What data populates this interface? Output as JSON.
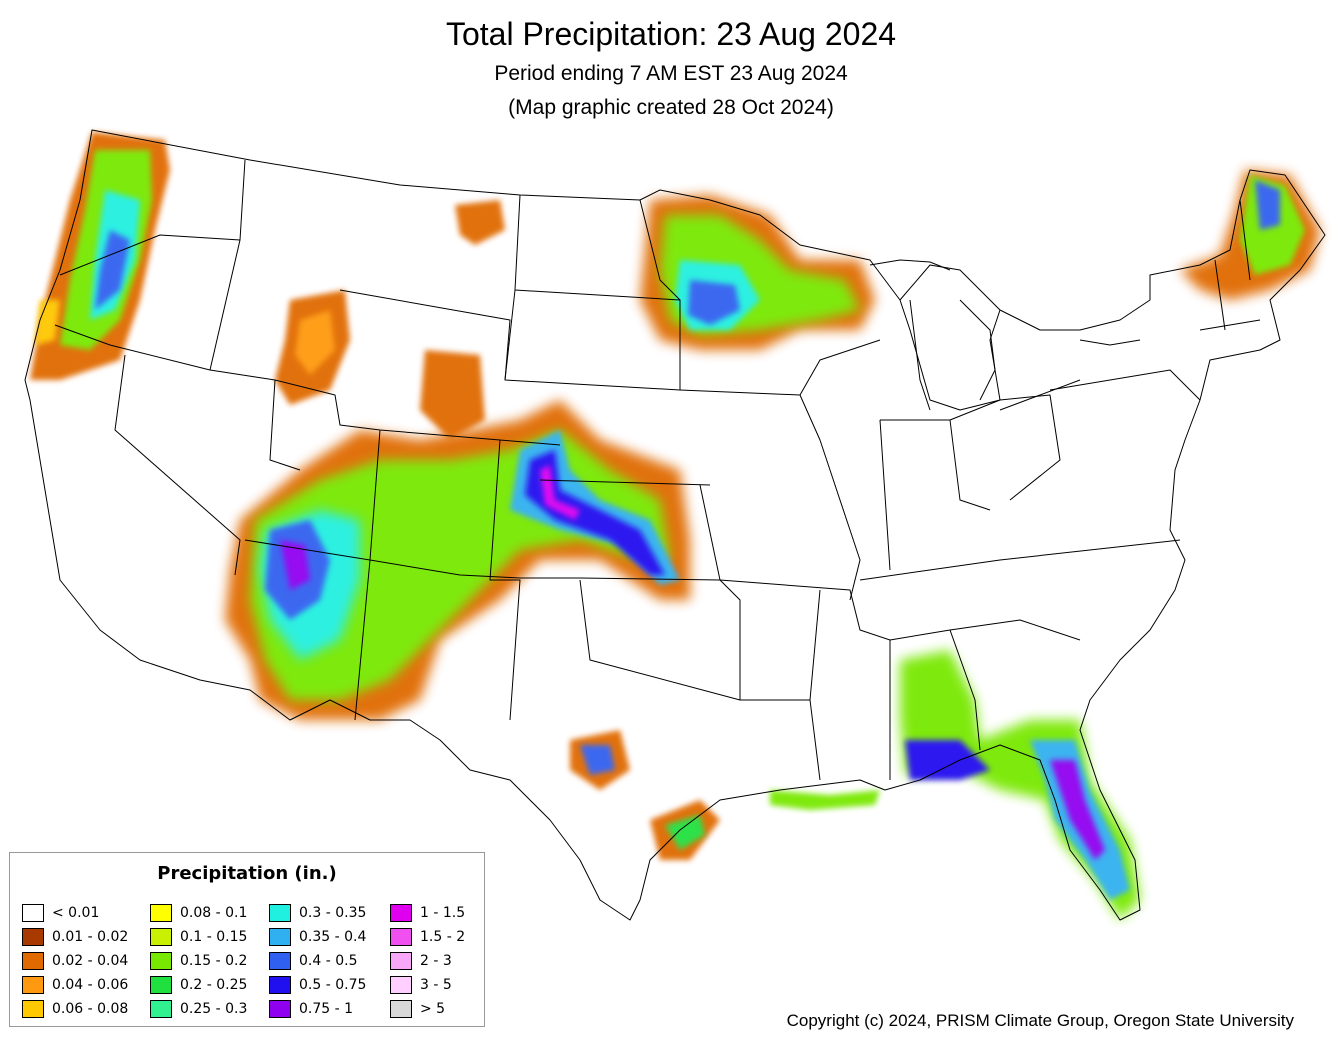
{
  "title": "Total Precipitation: 23 Aug 2024",
  "subtitle": "Period ending 7 AM EST 23 Aug 2024",
  "subtitle2": "(Map graphic created 28 Oct 2024)",
  "copyright": "Copyright (c) 2024, PRISM Climate Group, Oregon State University",
  "legend": {
    "title": "Precipitation (in.)",
    "items": [
      {
        "label": "< 0.01",
        "color": "#ffffff"
      },
      {
        "label": "0.01 - 0.02",
        "color": "#a83a00"
      },
      {
        "label": "0.02 - 0.04",
        "color": "#e06a00"
      },
      {
        "label": "0.04 - 0.06",
        "color": "#ff9a10"
      },
      {
        "label": "0.06 - 0.08",
        "color": "#ffc800"
      },
      {
        "label": "0.08 - 0.1",
        "color": "#ffff00"
      },
      {
        "label": "0.1 - 0.15",
        "color": "#c8f000"
      },
      {
        "label": "0.15 - 0.2",
        "color": "#78e800"
      },
      {
        "label": "0.2 - 0.25",
        "color": "#20e040"
      },
      {
        "label": "0.25 - 0.3",
        "color": "#30f090"
      },
      {
        "label": "0.3 - 0.35",
        "color": "#20f0e0"
      },
      {
        "label": "0.35 - 0.4",
        "color": "#30b0f0"
      },
      {
        "label": "0.4 - 0.5",
        "color": "#3060f0"
      },
      {
        "label": "0.5 - 0.75",
        "color": "#2010f0"
      },
      {
        "label": "0.75 - 1",
        "color": "#9000f0"
      },
      {
        "label": "1 - 1.5",
        "color": "#e000f0"
      },
      {
        "label": "1.5 - 2",
        "color": "#f050f0"
      },
      {
        "label": "2 - 3",
        "color": "#f8a8f8"
      },
      {
        "label": "3 - 5",
        "color": "#ffd0ff"
      },
      {
        "label": "> 5",
        "color": "#d8d8d8"
      }
    ]
  }
}
